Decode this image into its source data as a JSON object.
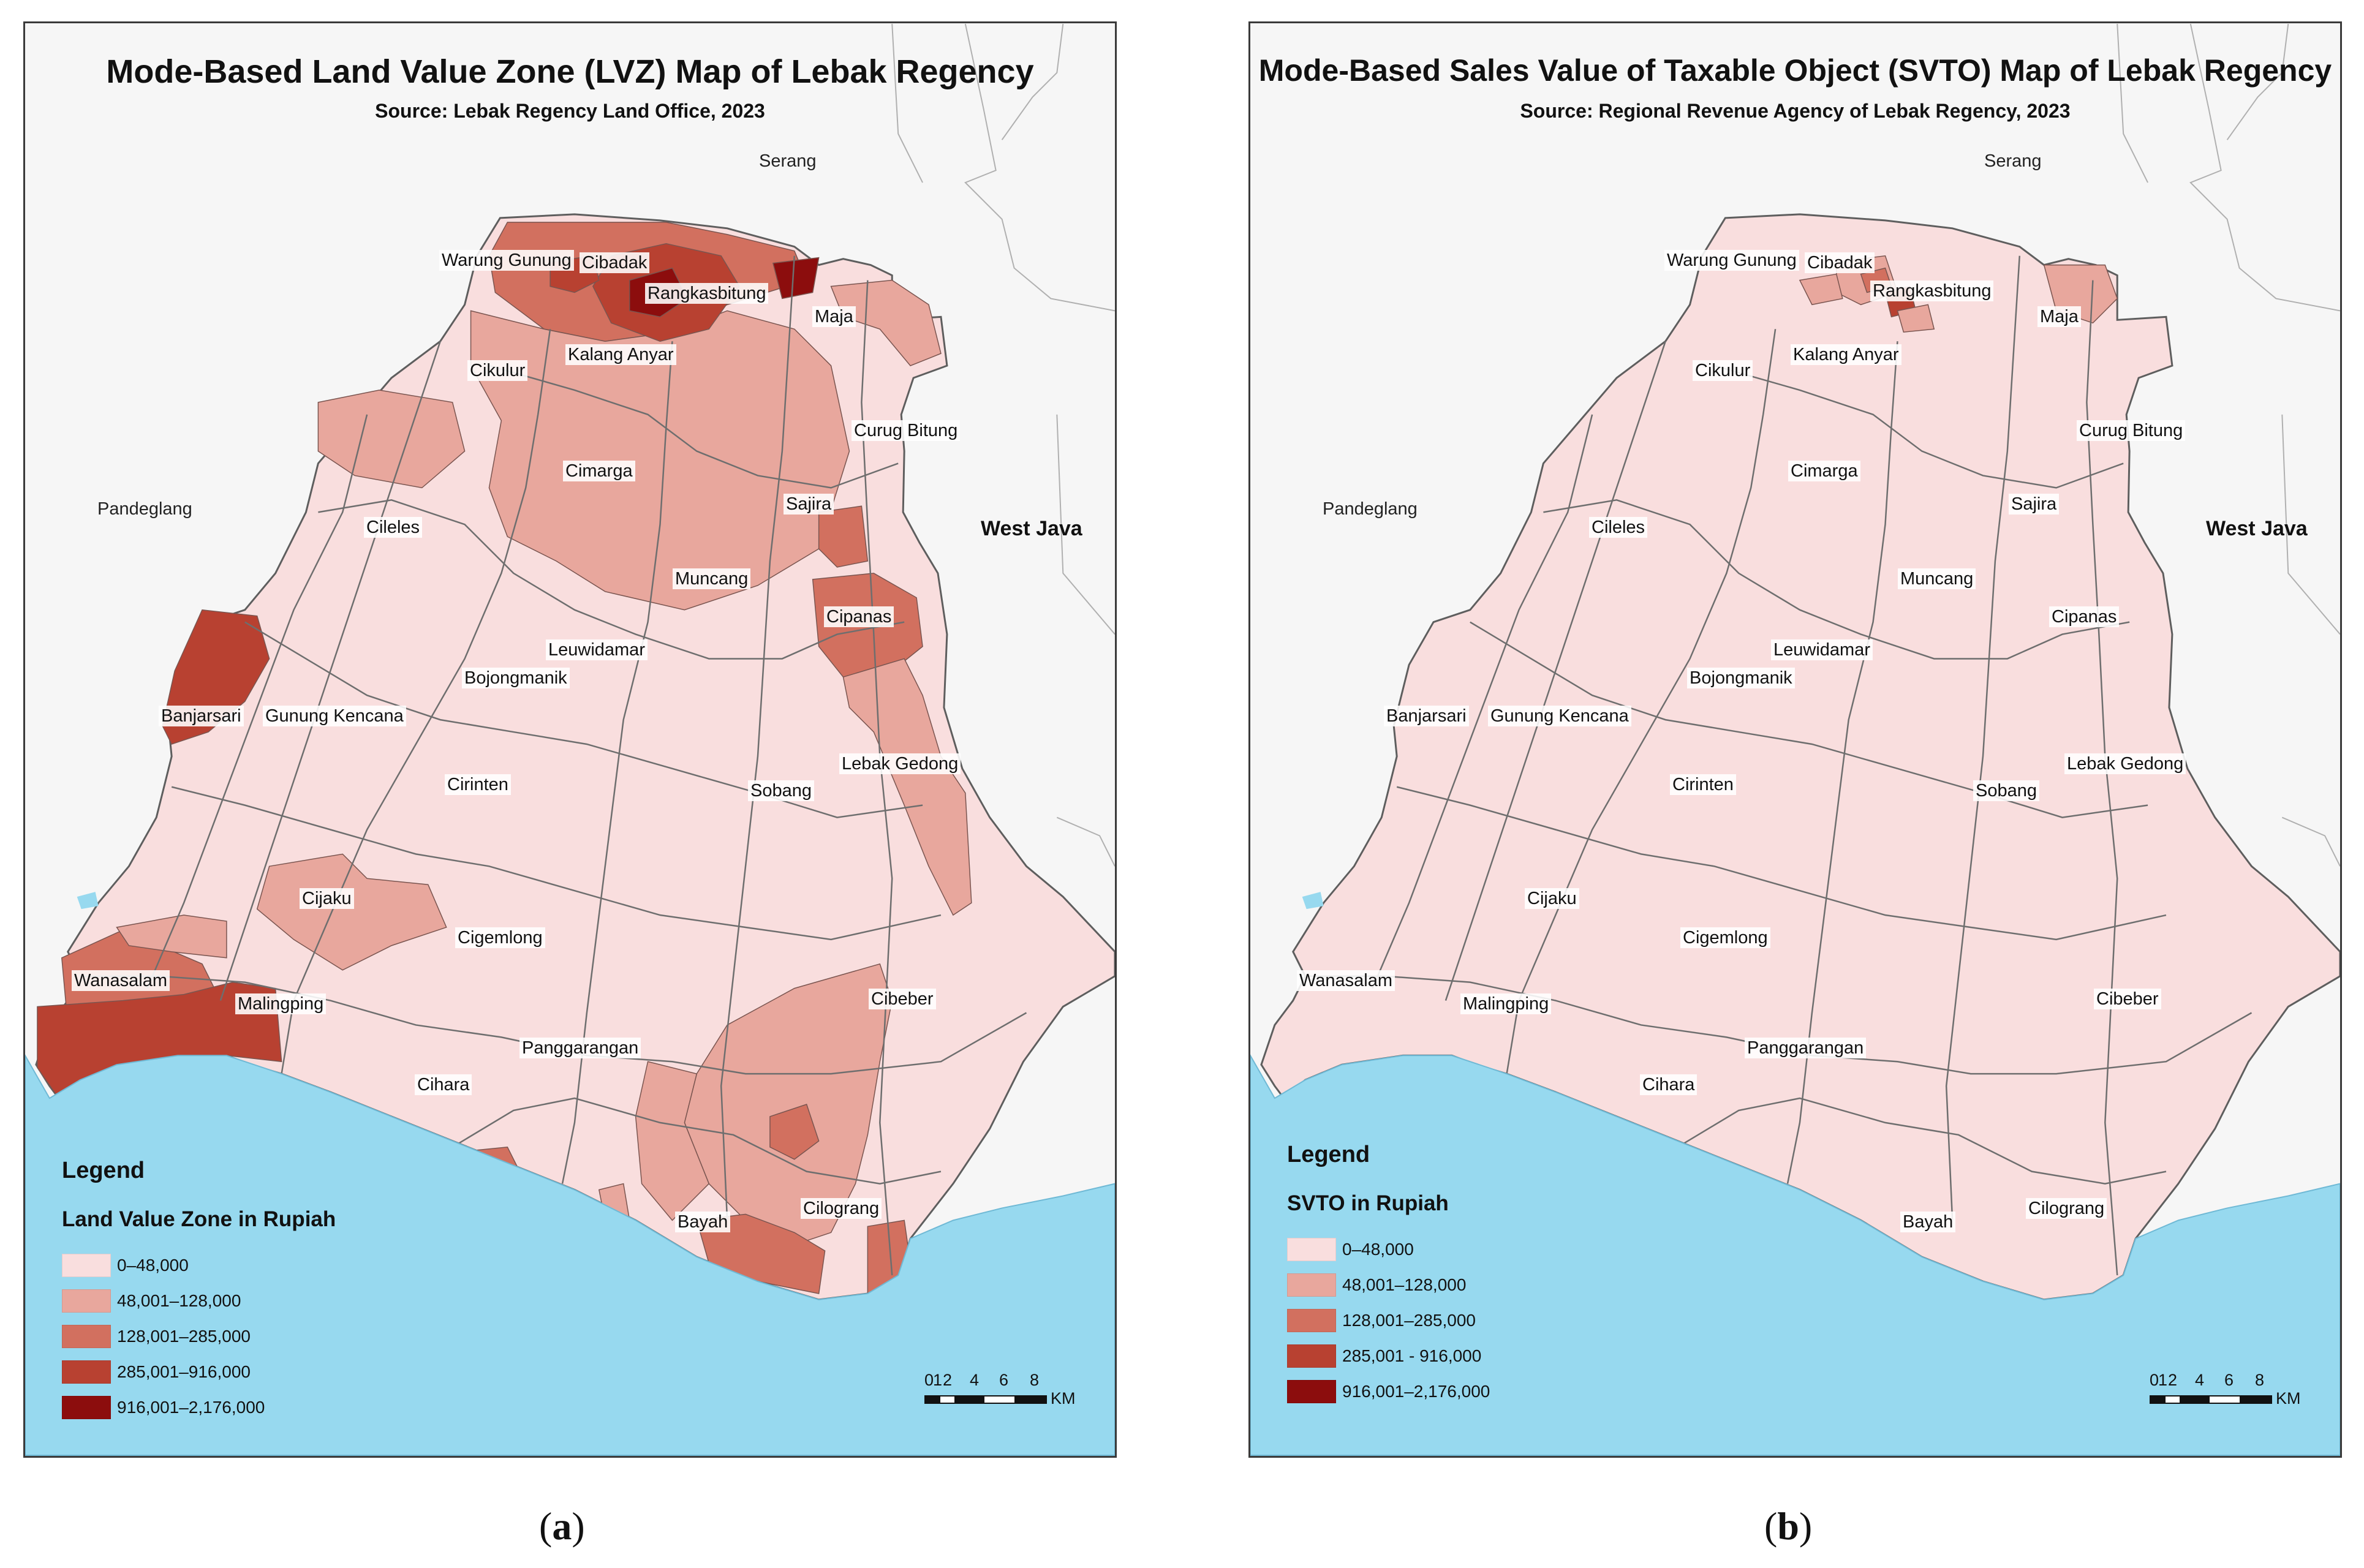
{
  "panels": [
    {
      "title": "Mode-Based Land Value Zone (LVZ) Map of Lebak Regency",
      "source": "Source: Lebak Regency Land Office, 2023",
      "legend_title": "Legend",
      "legend_subtitle": "Land Value Zone in Rupiah",
      "legend_items": [
        "0–48,000",
        "48,001–128,000",
        "128,001–285,000",
        "285,001–916,000",
        "916,001–2,176,000"
      ],
      "scale_ticks": [
        "0",
        "1",
        "2",
        "4",
        "6",
        "8"
      ],
      "scale_unit": "KM",
      "caption": "a",
      "regions": [
        "Serang",
        "Pandeglang",
        "West Java"
      ]
    },
    {
      "title": "Mode-Based Sales Value of Taxable Object (SVTO) Map of Lebak Regency",
      "source": "Source: Regional Revenue Agency of Lebak Regency, 2023",
      "legend_title": "Legend",
      "legend_subtitle": "SVTO in Rupiah",
      "legend_items": [
        "0–48,000",
        "48,001–128,000",
        "128,001–285,000",
        "285,001 - 916,000",
        "916,001–2,176,000"
      ],
      "scale_ticks": [
        "0",
        "1",
        "2",
        "4",
        "6",
        "8"
      ],
      "scale_unit": "KM",
      "caption": "b",
      "regions": [
        "Serang",
        "Pandeglang",
        "West Java"
      ]
    }
  ],
  "districts": [
    "Warung Gunung",
    "Cibadak",
    "Rangkasbitung",
    "Maja",
    "Kalang Anyar",
    "Cikulur",
    "Curug Bitung",
    "Cimarga",
    "Sajira",
    "Cileles",
    "Muncang",
    "Cipanas",
    "Leuwidamar",
    "Bojongmanik",
    "Banjarsari",
    "Gunung Kencana",
    "Lebak Gedong",
    "Cirinten",
    "Sobang",
    "Cijaku",
    "Cigemlong",
    "Wanasalam",
    "Malingping",
    "Cibeber",
    "Panggarangan",
    "Cihara",
    "Bayah",
    "Cilograng"
  ],
  "palette": {
    "class_colors": [
      "#f9dede",
      "#e8a79d",
      "#d2705f",
      "#b84131",
      "#8c0d0d"
    ],
    "sea": "#97d9ef",
    "outside": "#f6f6f6",
    "boundary": "#6e6e6e"
  }
}
